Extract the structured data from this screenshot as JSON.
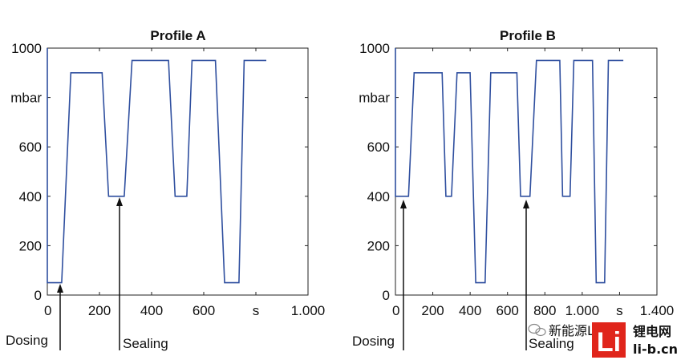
{
  "chart_data": [
    {
      "type": "line",
      "title": "Profile A",
      "ylabel": "mbar",
      "xlabel": "s",
      "xlim": [
        0,
        1000
      ],
      "ylim": [
        0,
        1000
      ],
      "x_ticks": [
        "0",
        "200",
        "400",
        "600",
        "s",
        "1.000"
      ],
      "y_ticks": [
        "0",
        "200",
        "400",
        "600",
        "mbar",
        "1000"
      ],
      "grid": false,
      "series": [
        {
          "color": "#2f4f9f",
          "x": [
            0,
            0,
            10,
            55,
            90,
            210,
            235,
            295,
            325,
            465,
            490,
            535,
            555,
            645,
            680,
            735,
            755,
            840
          ],
          "y": [
            1000,
            50,
            50,
            50,
            900,
            900,
            400,
            400,
            950,
            950,
            400,
            400,
            950,
            950,
            50,
            50,
            950,
            950
          ]
        }
      ],
      "annotations": [
        {
          "text": "Dosing",
          "x": 50,
          "y": 400
        },
        {
          "text": "Sealing",
          "x": 280,
          "y": 400
        }
      ]
    },
    {
      "type": "line",
      "title": "Profile B",
      "ylabel": "mbar",
      "xlabel": "s",
      "xlim": [
        0,
        1400
      ],
      "ylim": [
        0,
        1000
      ],
      "x_ticks": [
        "0",
        "200",
        "400",
        "600",
        "800",
        "1.000",
        "s",
        "1.400"
      ],
      "y_ticks": [
        "0",
        "200",
        "400",
        "600",
        "mbar",
        "1000"
      ],
      "grid": false,
      "series": [
        {
          "color": "#2f4f9f",
          "x": [
            0,
            0,
            70,
            100,
            250,
            270,
            300,
            330,
            400,
            430,
            480,
            510,
            650,
            670,
            720,
            755,
            880,
            895,
            935,
            955,
            1055,
            1075,
            1120,
            1140,
            1220
          ],
          "y": [
            1000,
            400,
            400,
            900,
            900,
            400,
            400,
            900,
            900,
            50,
            50,
            900,
            900,
            400,
            400,
            950,
            950,
            400,
            400,
            950,
            950,
            50,
            50,
            950,
            950
          ]
        }
      ],
      "annotations": [
        {
          "text": "Dosing",
          "x": 50,
          "y": 400
        },
        {
          "text": "Sealing",
          "x": 700,
          "y": 400
        }
      ]
    }
  ],
  "watermark": {
    "wechat_text": "新能源Leader",
    "logo_text": "Li",
    "site_name": "锂电网",
    "site_url": "li-b.cn"
  }
}
